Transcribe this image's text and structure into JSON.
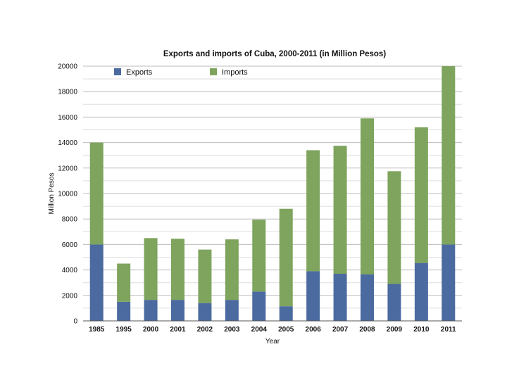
{
  "chart_data": {
    "type": "bar",
    "stacked": true,
    "title": "Exports and imports of Cuba, 2000-2011 (in Million Pesos)",
    "xlabel": "Year",
    "ylabel": "Million Pesos",
    "ylim": [
      0,
      20000
    ],
    "yticks": [
      "0",
      "2000",
      "4000",
      "6000",
      "8000",
      "10000",
      "12000",
      "14000",
      "16000",
      "18000",
      "20000"
    ],
    "grid": true,
    "legend_position": "top-left",
    "categories": [
      "1985",
      "1995",
      "2000",
      "2001",
      "2002",
      "2003",
      "2004",
      "2005",
      "2006",
      "2007",
      "2008",
      "2009",
      "2010",
      "2011"
    ],
    "series": [
      {
        "name": "Exports",
        "color": "#4a6aa0",
        "values": [
          6000,
          1500,
          1650,
          1650,
          1400,
          1650,
          2300,
          1150,
          3900,
          3700,
          3650,
          2900,
          4550,
          6000
        ]
      },
      {
        "name": "Imports",
        "color": "#7ea45d",
        "values": [
          8000,
          3000,
          4850,
          4800,
          4200,
          4750,
          5650,
          7650,
          9500,
          10050,
          12250,
          8850,
          10650,
          14000
        ]
      }
    ]
  }
}
